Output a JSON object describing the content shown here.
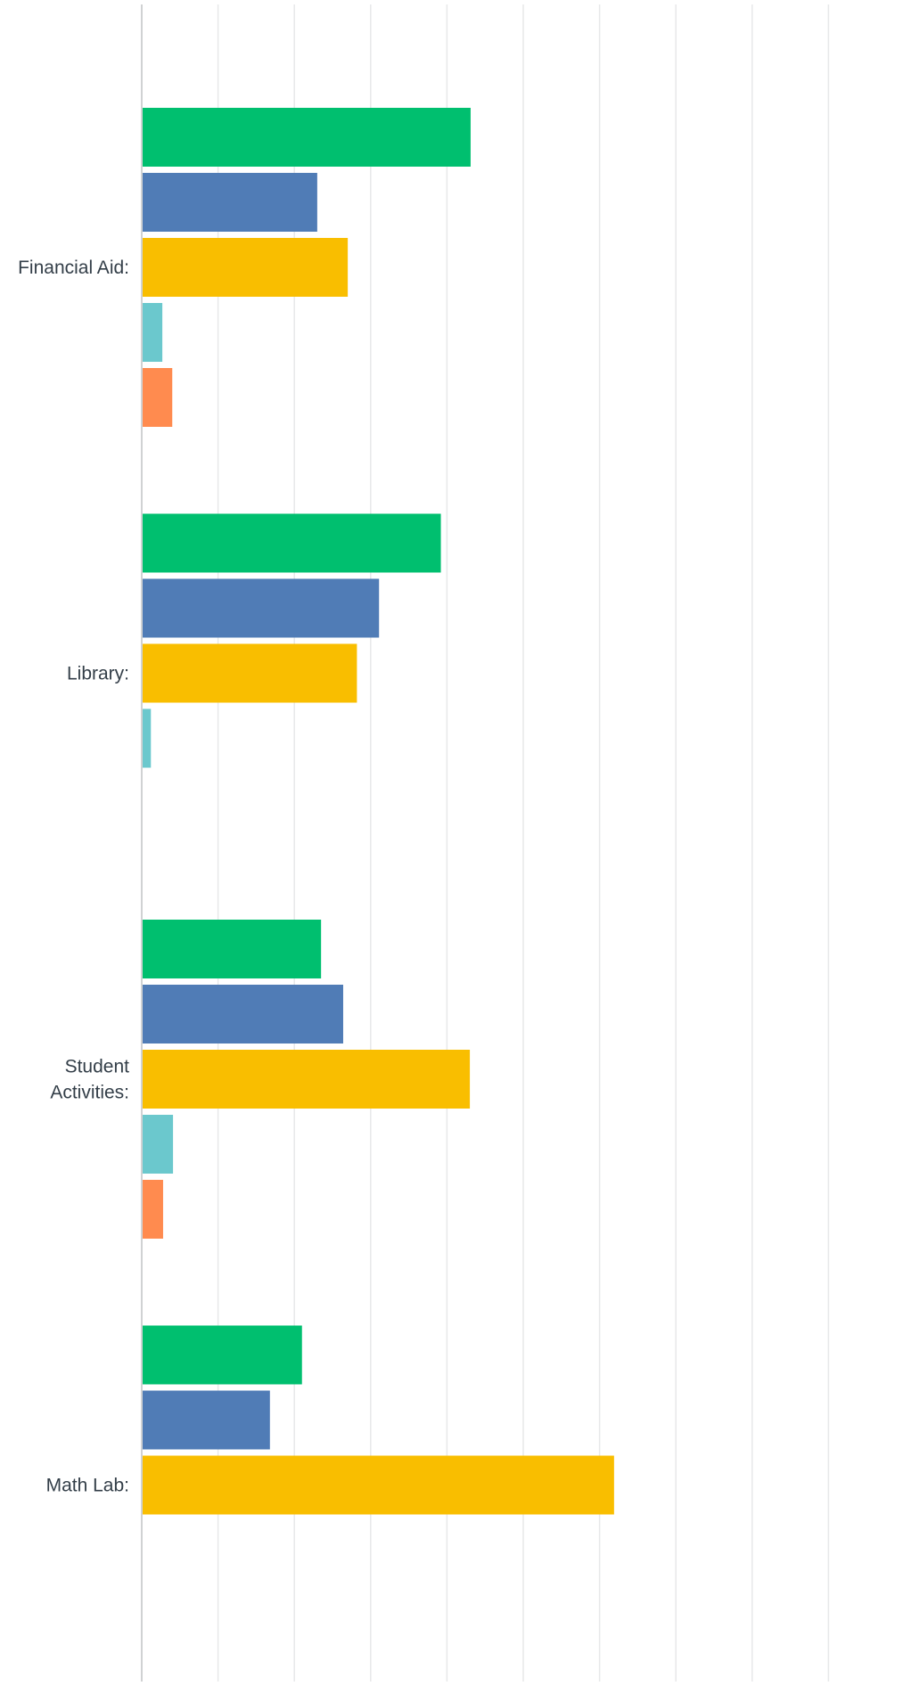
{
  "chart_data": {
    "type": "bar",
    "orientation": "horizontal",
    "categories": [
      "Financial Aid:",
      "Library:",
      "Student Activities:",
      "Math Lab:"
    ],
    "category_label_lines": [
      [
        "Financial Aid:"
      ],
      [
        "Library:"
      ],
      [
        "Student",
        "Activities:"
      ],
      [
        "Math Lab:"
      ]
    ],
    "series": [
      {
        "color": "#00bf6f",
        "values": [
          43.1,
          39.2,
          23.5,
          21.0
        ]
      },
      {
        "color": "#507cb6",
        "values": [
          23.0,
          31.1,
          26.4,
          16.8
        ]
      },
      {
        "color": "#f9be00",
        "values": [
          27.0,
          28.2,
          43.0,
          61.9
        ]
      },
      {
        "color": "#6bc8cd",
        "values": [
          2.7,
          1.2,
          4.1,
          0
        ]
      },
      {
        "color": "#ff8b4f",
        "values": [
          4.0,
          0,
          2.8,
          0
        ]
      }
    ],
    "xlim": [
      0,
      100
    ],
    "grid": true,
    "legend": "none"
  }
}
